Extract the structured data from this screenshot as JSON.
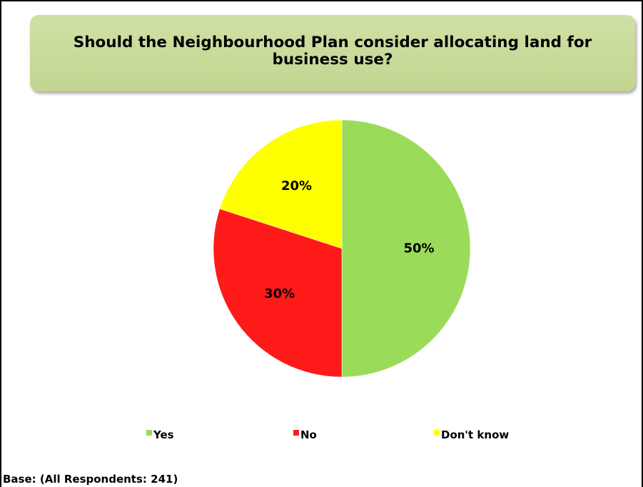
{
  "chart_data": {
    "type": "pie",
    "title": "Should the Neighbourhood Plan consider allocating land for business use?",
    "categories": [
      "Yes",
      "No",
      "Don't know"
    ],
    "values": [
      50,
      30,
      20
    ],
    "labels": [
      "50%",
      "30%",
      "20%"
    ],
    "colors": [
      "#9bdb5a",
      "#ff1a1a",
      "#ffff00"
    ],
    "legend_position": "bottom"
  },
  "footer": {
    "base_note": "Base: (All Respondents: 241)"
  }
}
